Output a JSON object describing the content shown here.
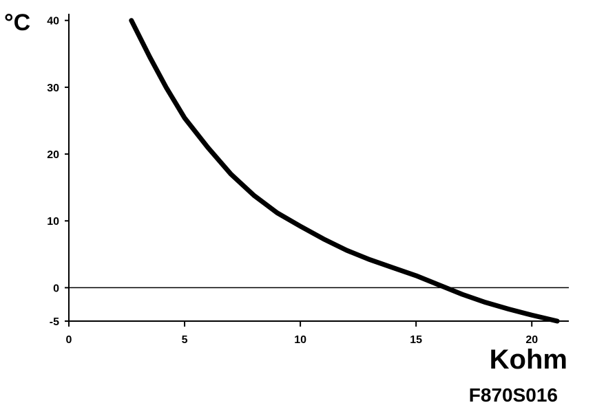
{
  "chart_data": {
    "type": "line",
    "y_label": "°C",
    "x_label": "Kohm",
    "annotation": "F870S016",
    "x": [
      2.7,
      3.5,
      4.2,
      5,
      6,
      7,
      8,
      9,
      10,
      11,
      12,
      13,
      14,
      15,
      16,
      17,
      18,
      19,
      20,
      21.1
    ],
    "series": [
      {
        "color": "#000000",
        "values": [
          40,
          34.5,
          30,
          25.4,
          21,
          17,
          13.8,
          11.2,
          9.2,
          7.3,
          5.6,
          4.2,
          3.0,
          1.8,
          0.4,
          -1,
          -2.2,
          -3.2,
          -4.1,
          -5
        ]
      }
    ],
    "xlim": [
      0,
      21.6
    ],
    "ylim": [
      -5,
      41
    ],
    "xticks": [
      0,
      5,
      10,
      15,
      20
    ],
    "yticks": [
      -5,
      0,
      10,
      20,
      30,
      40
    ],
    "zero_line": true
  }
}
